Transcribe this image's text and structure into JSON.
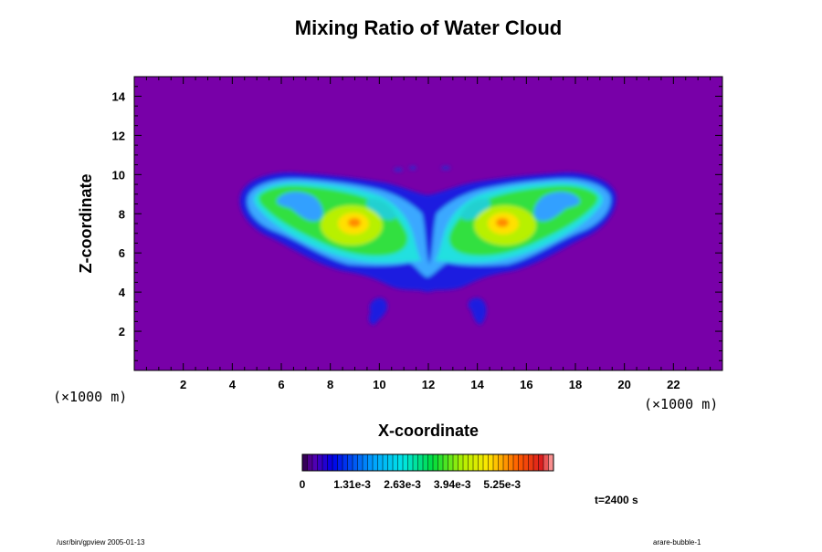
{
  "chart_data": {
    "type": "heatmap",
    "title": "Mixing Ratio of Water Cloud",
    "xlabel": "X-coordinate",
    "ylabel": "Z-coordinate",
    "x_unit": "(×1000 m)",
    "z_unit": "(×1000 m)",
    "xlim": [
      0,
      24
    ],
    "ylim": [
      0,
      15
    ],
    "x_ticks": [
      "2",
      "4",
      "6",
      "8",
      "10",
      "12",
      "14",
      "16",
      "18",
      "20",
      "22"
    ],
    "y_ticks": [
      "2",
      "4",
      "6",
      "8",
      "10",
      "12",
      "14"
    ],
    "colorbar": {
      "tick_labels": [
        "0",
        "1.31e-3",
        "2.63e-3",
        "3.94e-3",
        "5.25e-3"
      ],
      "tick_values": [
        0,
        0.00131,
        0.00263,
        0.00394,
        0.00525
      ],
      "range": [
        0,
        0.0066
      ]
    },
    "background_color": "#7800a8",
    "features": [
      {
        "x": 9.0,
        "z": 7.4,
        "value": 0.0052
      },
      {
        "x": 15.0,
        "z": 7.4,
        "value": 0.0052
      },
      {
        "x": 5.6,
        "z": 8.9,
        "value": 0.0026
      },
      {
        "x": 18.4,
        "z": 8.9,
        "value": 0.0026
      },
      {
        "x": 12.0,
        "z": 5.0,
        "value": 0.0006
      },
      {
        "x": 9.9,
        "z": 3.0,
        "value": 0.0004
      },
      {
        "x": 14.1,
        "z": 3.0,
        "value": 0.0004
      }
    ],
    "time_label": "t=2400 s"
  },
  "footer": {
    "left": "/usr/bin/gpview 2005-01-13",
    "right": "arare-bubble-1"
  }
}
